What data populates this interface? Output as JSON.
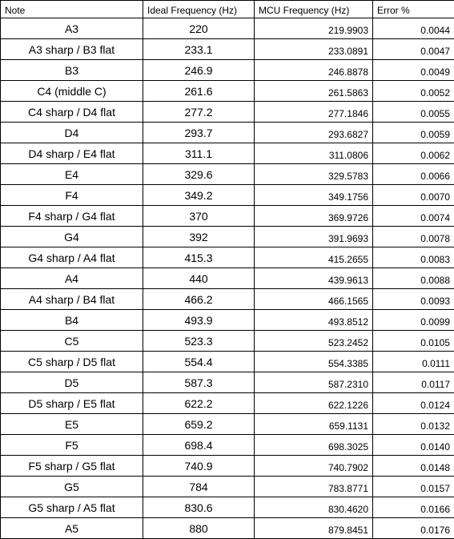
{
  "table": {
    "headers": [
      "Note",
      "Ideal Frequency (Hz)",
      "MCU Frequency (Hz)",
      "Error %"
    ],
    "rows": [
      [
        "A3",
        "220",
        "219.9903",
        "0.0044"
      ],
      [
        "A3 sharp / B3 flat",
        "233.1",
        "233.0891",
        "0.0047"
      ],
      [
        "B3",
        "246.9",
        "246.8878",
        "0.0049"
      ],
      [
        "C4 (middle C)",
        "261.6",
        "261.5863",
        "0.0052"
      ],
      [
        "C4 sharp / D4 flat",
        "277.2",
        "277.1846",
        "0.0055"
      ],
      [
        "D4",
        "293.7",
        "293.6827",
        "0.0059"
      ],
      [
        "D4 sharp / E4 flat",
        "311.1",
        "311.0806",
        "0.0062"
      ],
      [
        "E4",
        "329.6",
        "329.5783",
        "0.0066"
      ],
      [
        "F4",
        "349.2",
        "349.1756",
        "0.0070"
      ],
      [
        "F4 sharp / G4 flat",
        "370",
        "369.9726",
        "0.0074"
      ],
      [
        "G4",
        "392",
        "391.9693",
        "0.0078"
      ],
      [
        "G4 sharp / A4 flat",
        "415.3",
        "415.2655",
        "0.0083"
      ],
      [
        "A4",
        "440",
        "439.9613",
        "0.0088"
      ],
      [
        "A4 sharp / B4 flat",
        "466.2",
        "466.1565",
        "0.0093"
      ],
      [
        "B4",
        "493.9",
        "493.8512",
        "0.0099"
      ],
      [
        "C5",
        "523.3",
        "523.2452",
        "0.0105"
      ],
      [
        "C5 sharp / D5 flat",
        "554.4",
        "554.3385",
        "0.0111"
      ],
      [
        "D5",
        "587.3",
        "587.2310",
        "0.0117"
      ],
      [
        "D5 sharp / E5 flat",
        "622.2",
        "622.1226",
        "0.0124"
      ],
      [
        "E5",
        "659.2",
        "659.1131",
        "0.0132"
      ],
      [
        "F5",
        "698.4",
        "698.3025",
        "0.0140"
      ],
      [
        "F5 sharp / G5 flat",
        "740.9",
        "740.7902",
        "0.0148"
      ],
      [
        "G5",
        "784",
        "783.8771",
        "0.0157"
      ],
      [
        "G5 sharp / A5 flat",
        "830.6",
        "830.4620",
        "0.0166"
      ],
      [
        "A5",
        "880",
        "879.8451",
        "0.0176"
      ]
    ]
  }
}
